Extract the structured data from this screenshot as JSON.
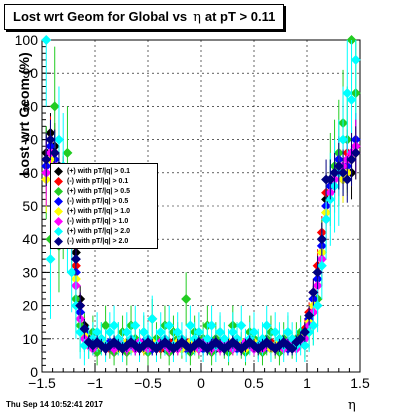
{
  "chart_data": {
    "type": "scatter",
    "title": "Lost wrt Geom for Global vs",
    "title_symbol": "η",
    "title_suffix": "at pT > 0.11",
    "xlabel": "η",
    "ylabel": "Lost wrt Geom (%)",
    "xlim": [
      -1.5,
      1.5
    ],
    "ylim": [
      0,
      100
    ],
    "x_ticks": [
      "−1.5",
      "−1",
      "−0.5",
      "0",
      "0.5",
      "1",
      "1.5"
    ],
    "y_ticks": [
      "0",
      "10",
      "20",
      "30",
      "40",
      "50",
      "60",
      "70",
      "80",
      "90",
      "100"
    ],
    "grid": true,
    "legend_position": "left-middle",
    "x": [
      -1.46,
      -1.42,
      -1.38,
      -1.34,
      -1.3,
      -1.26,
      -1.22,
      -1.18,
      -1.14,
      -1.1,
      -1.06,
      -1.02,
      -0.98,
      -0.94,
      -0.9,
      -0.86,
      -0.82,
      -0.78,
      -0.74,
      -0.7,
      -0.66,
      -0.62,
      -0.58,
      -0.54,
      -0.5,
      -0.46,
      -0.42,
      -0.38,
      -0.34,
      -0.3,
      -0.26,
      -0.22,
      -0.18,
      -0.14,
      -0.1,
      -0.06,
      -0.02,
      0.02,
      0.06,
      0.1,
      0.14,
      0.18,
      0.22,
      0.26,
      0.3,
      0.34,
      0.38,
      0.42,
      0.46,
      0.5,
      0.54,
      0.58,
      0.62,
      0.66,
      0.7,
      0.74,
      0.78,
      0.82,
      0.86,
      0.9,
      0.94,
      0.98,
      1.02,
      1.06,
      1.1,
      1.14,
      1.18,
      1.22,
      1.26,
      1.3,
      1.34,
      1.38,
      1.42,
      1.46
    ],
    "series": [
      {
        "name": "(+) with pT/|q| > 0.1",
        "color": "#000000",
        "values": [
          66,
          72,
          68,
          62,
          58,
          54,
          48,
          36,
          22,
          14,
          10,
          8,
          9,
          8,
          7,
          8,
          9,
          8,
          7,
          8,
          7,
          8,
          9,
          7,
          8,
          7,
          9,
          8,
          7,
          8,
          9,
          8,
          7,
          8,
          7,
          8,
          7,
          8,
          9,
          8,
          7,
          8,
          7,
          8,
          7,
          8,
          9,
          7,
          8,
          7,
          8,
          7,
          8,
          7,
          8,
          9,
          8,
          7,
          8,
          9,
          10,
          12,
          16,
          22,
          30,
          40,
          52,
          58,
          60,
          62,
          58,
          64,
          60,
          68
        ],
        "errors": [
          8,
          6,
          7,
          6,
          7,
          6,
          6,
          5,
          4,
          3,
          2,
          2,
          2,
          2,
          2,
          2,
          2,
          2,
          2,
          2,
          2,
          2,
          2,
          2,
          2,
          2,
          2,
          2,
          2,
          2,
          2,
          2,
          2,
          2,
          2,
          2,
          2,
          2,
          2,
          2,
          2,
          2,
          2,
          2,
          2,
          2,
          2,
          2,
          2,
          2,
          2,
          2,
          2,
          2,
          2,
          2,
          2,
          2,
          2,
          2,
          2,
          3,
          3,
          4,
          5,
          5,
          6,
          6,
          6,
          7,
          7,
          7,
          8,
          8
        ]
      },
      {
        "name": "(-) with pT/|q| > 0.1",
        "color": "#ff0000",
        "values": [
          64,
          70,
          66,
          60,
          57,
          52,
          46,
          32,
          20,
          13,
          9,
          8,
          8,
          9,
          8,
          7,
          8,
          9,
          8,
          7,
          8,
          9,
          8,
          7,
          8,
          9,
          8,
          7,
          8,
          9,
          8,
          7,
          8,
          9,
          8,
          7,
          8,
          9,
          8,
          7,
          8,
          9,
          8,
          7,
          8,
          9,
          8,
          7,
          8,
          9,
          8,
          7,
          8,
          9,
          8,
          7,
          8,
          9,
          8,
          9,
          11,
          13,
          18,
          24,
          32,
          42,
          54,
          56,
          58,
          60,
          62,
          66,
          64,
          66
        ],
        "errors": [
          8,
          7,
          7,
          6,
          6,
          6,
          6,
          5,
          4,
          3,
          2,
          2,
          2,
          2,
          2,
          2,
          2,
          2,
          2,
          2,
          2,
          2,
          2,
          2,
          2,
          2,
          2,
          2,
          2,
          2,
          2,
          2,
          2,
          2,
          2,
          2,
          2,
          2,
          2,
          2,
          2,
          2,
          2,
          2,
          2,
          2,
          2,
          2,
          2,
          2,
          2,
          2,
          2,
          2,
          2,
          2,
          2,
          2,
          2,
          2,
          2,
          3,
          3,
          4,
          5,
          5,
          6,
          6,
          6,
          7,
          7,
          7,
          8,
          8
        ]
      },
      {
        "name": "(+) with pT/|q| > 0.5",
        "color": "#22cc22",
        "values": [
          60,
          40,
          80,
          38,
          50,
          66,
          44,
          22,
          14,
          12,
          8,
          12,
          6,
          10,
          14,
          8,
          6,
          10,
          12,
          6,
          14,
          10,
          8,
          12,
          6,
          16,
          10,
          8,
          14,
          6,
          12,
          10,
          8,
          22,
          6,
          12,
          8,
          10,
          14,
          6,
          10,
          12,
          8,
          6,
          14,
          10,
          8,
          6,
          12,
          10,
          8,
          6,
          10,
          12,
          8,
          6,
          10,
          12,
          8,
          10,
          12,
          8,
          12,
          14,
          22,
          36,
          48,
          58,
          62,
          66,
          75,
          70,
          100,
          84
        ],
        "errors": [
          14,
          16,
          18,
          14,
          16,
          14,
          14,
          10,
          8,
          6,
          4,
          5,
          4,
          5,
          6,
          4,
          4,
          5,
          5,
          4,
          6,
          5,
          4,
          5,
          4,
          6,
          5,
          4,
          6,
          4,
          5,
          5,
          4,
          8,
          4,
          5,
          4,
          5,
          6,
          4,
          5,
          5,
          4,
          4,
          6,
          5,
          4,
          4,
          5,
          5,
          4,
          4,
          5,
          5,
          4,
          4,
          5,
          5,
          4,
          5,
          5,
          4,
          5,
          6,
          8,
          10,
          12,
          14,
          14,
          16,
          16,
          16,
          18,
          16
        ]
      },
      {
        "name": "(-) with pT/|q| > 0.5",
        "color": "#0000ff",
        "values": [
          62,
          68,
          64,
          58,
          56,
          52,
          44,
          30,
          18,
          12,
          9,
          8,
          9,
          8,
          7,
          9,
          8,
          7,
          8,
          9,
          8,
          7,
          8,
          9,
          8,
          7,
          8,
          9,
          8,
          7,
          8,
          9,
          8,
          7,
          8,
          9,
          8,
          7,
          8,
          9,
          8,
          7,
          8,
          9,
          8,
          7,
          8,
          9,
          8,
          7,
          8,
          9,
          8,
          7,
          8,
          9,
          8,
          7,
          8,
          9,
          10,
          12,
          16,
          22,
          28,
          38,
          50,
          56,
          60,
          64,
          60,
          62,
          66,
          70
        ],
        "errors": [
          9,
          7,
          7,
          6,
          6,
          6,
          6,
          5,
          4,
          3,
          2,
          2,
          2,
          2,
          2,
          2,
          2,
          2,
          2,
          2,
          2,
          2,
          2,
          2,
          2,
          2,
          2,
          2,
          2,
          2,
          2,
          2,
          2,
          2,
          2,
          2,
          2,
          2,
          2,
          2,
          2,
          2,
          2,
          2,
          2,
          2,
          2,
          2,
          2,
          2,
          2,
          2,
          2,
          2,
          2,
          2,
          2,
          2,
          2,
          2,
          2,
          3,
          3,
          4,
          5,
          5,
          6,
          6,
          6,
          7,
          7,
          7,
          8,
          8
        ]
      },
      {
        "name": "(+) with pT/|q| > 1.0",
        "color": "#ffff00",
        "values": [
          58,
          64,
          60,
          55,
          52,
          48,
          42,
          28,
          16,
          11,
          8,
          7,
          8,
          9,
          7,
          8,
          9,
          7,
          8,
          9,
          7,
          8,
          9,
          7,
          8,
          9,
          7,
          8,
          9,
          7,
          8,
          9,
          7,
          8,
          9,
          7,
          8,
          9,
          7,
          8,
          9,
          7,
          8,
          9,
          7,
          8,
          9,
          7,
          8,
          9,
          7,
          8,
          9,
          7,
          8,
          9,
          7,
          8,
          9,
          8,
          9,
          11,
          15,
          20,
          26,
          36,
          48,
          54,
          58,
          62,
          58,
          60,
          64,
          66
        ],
        "errors": [
          10,
          8,
          8,
          7,
          7,
          7,
          6,
          5,
          4,
          3,
          2,
          2,
          2,
          2,
          2,
          2,
          2,
          2,
          2,
          2,
          2,
          2,
          2,
          2,
          2,
          2,
          2,
          2,
          2,
          2,
          2,
          2,
          2,
          2,
          2,
          2,
          2,
          2,
          2,
          2,
          2,
          2,
          2,
          2,
          2,
          2,
          2,
          2,
          2,
          2,
          2,
          2,
          2,
          2,
          2,
          2,
          2,
          2,
          2,
          2,
          2,
          3,
          3,
          4,
          5,
          5,
          6,
          6,
          6,
          7,
          7,
          7,
          8,
          8
        ]
      },
      {
        "name": "(-) with pT/|q| > 1.0",
        "color": "#ff00ff",
        "values": [
          60,
          66,
          62,
          56,
          54,
          50,
          40,
          26,
          16,
          10,
          8,
          7,
          9,
          8,
          7,
          8,
          7,
          9,
          8,
          7,
          8,
          7,
          9,
          8,
          7,
          8,
          7,
          9,
          8,
          7,
          8,
          7,
          9,
          8,
          7,
          8,
          7,
          9,
          8,
          7,
          8,
          7,
          9,
          8,
          7,
          8,
          7,
          9,
          8,
          7,
          8,
          7,
          9,
          8,
          7,
          8,
          7,
          9,
          8,
          7,
          9,
          10,
          14,
          18,
          26,
          34,
          46,
          54,
          58,
          60,
          62,
          64,
          66,
          68
        ],
        "errors": [
          10,
          8,
          8,
          7,
          7,
          7,
          6,
          5,
          4,
          3,
          2,
          2,
          2,
          2,
          2,
          2,
          2,
          2,
          2,
          2,
          2,
          2,
          2,
          2,
          2,
          2,
          2,
          2,
          2,
          2,
          2,
          2,
          2,
          2,
          2,
          2,
          2,
          2,
          2,
          2,
          2,
          2,
          2,
          2,
          2,
          2,
          2,
          2,
          2,
          2,
          2,
          2,
          2,
          2,
          2,
          2,
          2,
          2,
          2,
          2,
          2,
          3,
          3,
          4,
          5,
          5,
          6,
          6,
          6,
          7,
          7,
          7,
          8,
          8
        ]
      },
      {
        "name": "(+) with pT/|q| > 2.0",
        "color": "#00ffff",
        "values": [
          100,
          34,
          56,
          70,
          62,
          44,
          30,
          20,
          12,
          8,
          9,
          10,
          12,
          10,
          8,
          12,
          14,
          10,
          8,
          12,
          10,
          14,
          8,
          12,
          10,
          16,
          8,
          12,
          10,
          14,
          8,
          12,
          10,
          8,
          14,
          10,
          12,
          8,
          10,
          14,
          8,
          12,
          10,
          8,
          12,
          10,
          14,
          8,
          10,
          12,
          8,
          10,
          14,
          8,
          12,
          10,
          8,
          12,
          10,
          8,
          10,
          8,
          12,
          14,
          20,
          32,
          46,
          52,
          56,
          60,
          70,
          84,
          82,
          94
        ],
        "errors": [
          20,
          18,
          16,
          16,
          16,
          14,
          12,
          10,
          8,
          6,
          5,
          5,
          6,
          5,
          5,
          6,
          6,
          5,
          5,
          6,
          5,
          6,
          5,
          6,
          5,
          7,
          5,
          6,
          5,
          6,
          5,
          6,
          5,
          5,
          6,
          5,
          6,
          5,
          5,
          6,
          5,
          6,
          5,
          5,
          6,
          5,
          6,
          5,
          5,
          6,
          5,
          5,
          6,
          5,
          6,
          5,
          5,
          6,
          5,
          5,
          5,
          5,
          6,
          6,
          8,
          10,
          12,
          14,
          14,
          16,
          16,
          18,
          18,
          18
        ]
      },
      {
        "name": "(-) with pT/|q| > 2.0",
        "color": "#000080",
        "values": [
          64,
          70,
          66,
          60,
          56,
          52,
          46,
          34,
          20,
          13,
          9,
          8,
          9,
          8,
          7,
          8,
          9,
          8,
          7,
          8,
          9,
          8,
          7,
          8,
          9,
          8,
          7,
          8,
          9,
          8,
          7,
          8,
          9,
          8,
          7,
          8,
          9,
          8,
          7,
          8,
          9,
          8,
          7,
          8,
          9,
          8,
          7,
          8,
          9,
          8,
          7,
          8,
          9,
          8,
          7,
          8,
          9,
          8,
          7,
          9,
          10,
          12,
          17,
          24,
          30,
          40,
          58,
          58,
          60,
          62,
          60,
          58,
          64,
          66
        ],
        "errors": [
          8,
          6,
          7,
          6,
          6,
          6,
          6,
          5,
          4,
          3,
          2,
          2,
          2,
          2,
          2,
          2,
          2,
          2,
          2,
          2,
          2,
          2,
          2,
          2,
          2,
          2,
          2,
          2,
          2,
          2,
          2,
          2,
          2,
          2,
          2,
          2,
          2,
          2,
          2,
          2,
          2,
          2,
          2,
          2,
          2,
          2,
          2,
          2,
          2,
          2,
          2,
          2,
          2,
          2,
          2,
          2,
          2,
          2,
          2,
          2,
          2,
          3,
          3,
          4,
          5,
          5,
          6,
          6,
          6,
          7,
          7,
          7,
          8,
          8
        ]
      }
    ]
  },
  "footer": {
    "timestamp": "Thu Sep 14 10:52:41 2017"
  }
}
